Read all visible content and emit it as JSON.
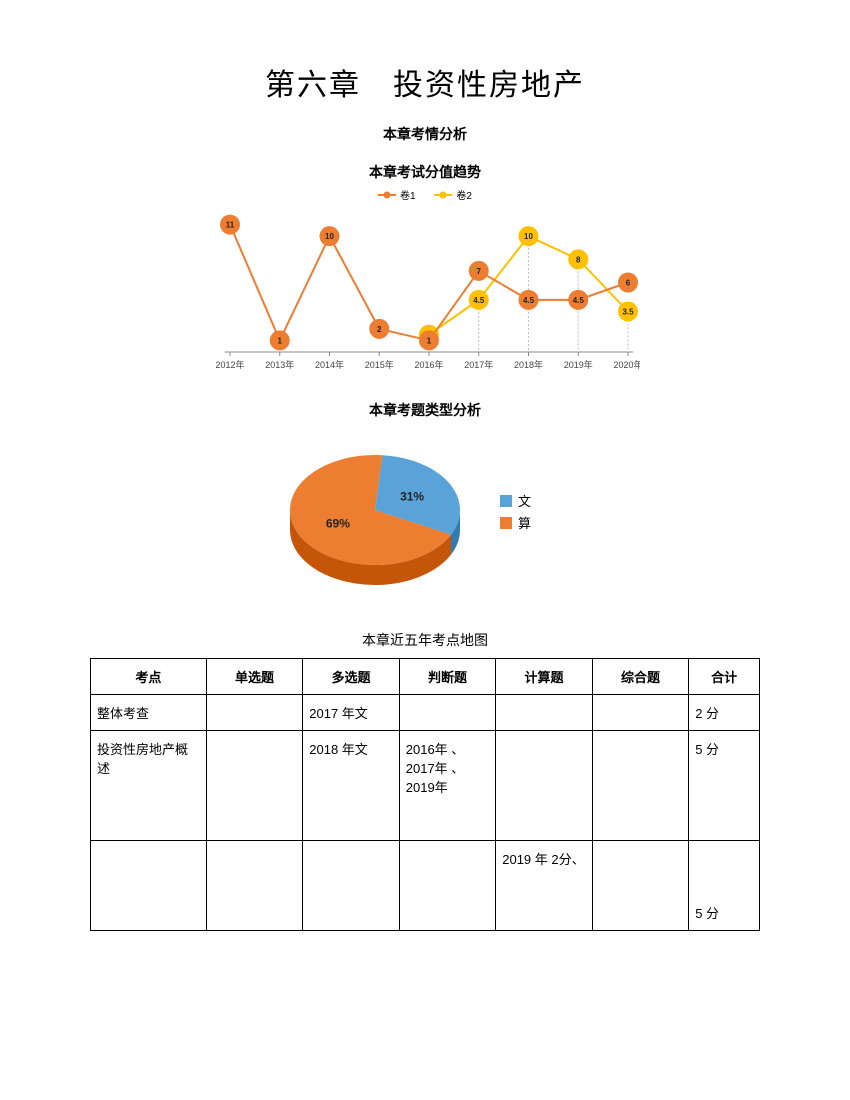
{
  "title": "第六章　投资性房地产",
  "subtitle": "本章考情分析",
  "line_chart": {
    "title": "本章考试分值趋势",
    "type": "line",
    "legend": [
      {
        "label": "卷1",
        "color": "#ed7d31"
      },
      {
        "label": "卷2",
        "color": "#ffc000"
      }
    ],
    "categories": [
      "2012年",
      "2013年",
      "2014年",
      "2015年",
      "2016年",
      "2017年",
      "2018年",
      "2019年",
      "2020年"
    ],
    "series1": {
      "color": "#ed7d31",
      "values": [
        11,
        1,
        10,
        2,
        1,
        7,
        4.5,
        4.5,
        6
      ],
      "labels": [
        "11",
        "1",
        "10",
        "2",
        "1",
        "7",
        "4.5",
        "4.5",
        "6"
      ]
    },
    "series2": {
      "color": "#ffc000",
      "values": [
        null,
        null,
        null,
        null,
        1.5,
        4.5,
        10,
        8,
        3.5
      ],
      "labels": [
        "",
        "",
        "",
        "",
        "1.5",
        "4.5",
        "10",
        "8",
        "3.5"
      ]
    },
    "ylim": [
      0,
      12
    ],
    "background": "#ffffff",
    "axis_color": "#888",
    "grid": false,
    "marker_radius": 10,
    "line_width": 2,
    "label_fontsize": 8
  },
  "pie_chart": {
    "title": "本章考题类型分析",
    "type": "pie-3d",
    "slices": [
      {
        "label": "文",
        "value": 31,
        "pct_label": "31%",
        "color": "#59a3d9"
      },
      {
        "label": "算",
        "value": 69,
        "pct_label": "69%",
        "color": "#ed7d31"
      }
    ],
    "legend_marker": "square",
    "label_fontsize": 12,
    "background": "#ffffff",
    "pct_label_color": "#222"
  },
  "table": {
    "title": "本章近五年考点地图",
    "columns": [
      "考点",
      "单选题",
      "多选题",
      "判断题",
      "计算题",
      "综合题",
      "合计"
    ],
    "rows": [
      {
        "kaodian": "整体考查",
        "danxuan": "",
        "duoxuan": "2017 年文",
        "panduan": "",
        "jisuan": "",
        "zonghe": "",
        "heji": "2 分"
      },
      {
        "kaodian": "投资性房地产概述",
        "danxuan": "",
        "duoxuan": "2018 年文",
        "panduan": "2016年 、2017年 、2019年",
        "jisuan": "",
        "zonghe": "",
        "heji": "5 分"
      },
      {
        "kaodian": "",
        "danxuan": "",
        "duoxuan": "",
        "panduan": "",
        "jisuan": "2019 年 2分、",
        "zonghe": "",
        "heji": "5 分"
      }
    ]
  }
}
